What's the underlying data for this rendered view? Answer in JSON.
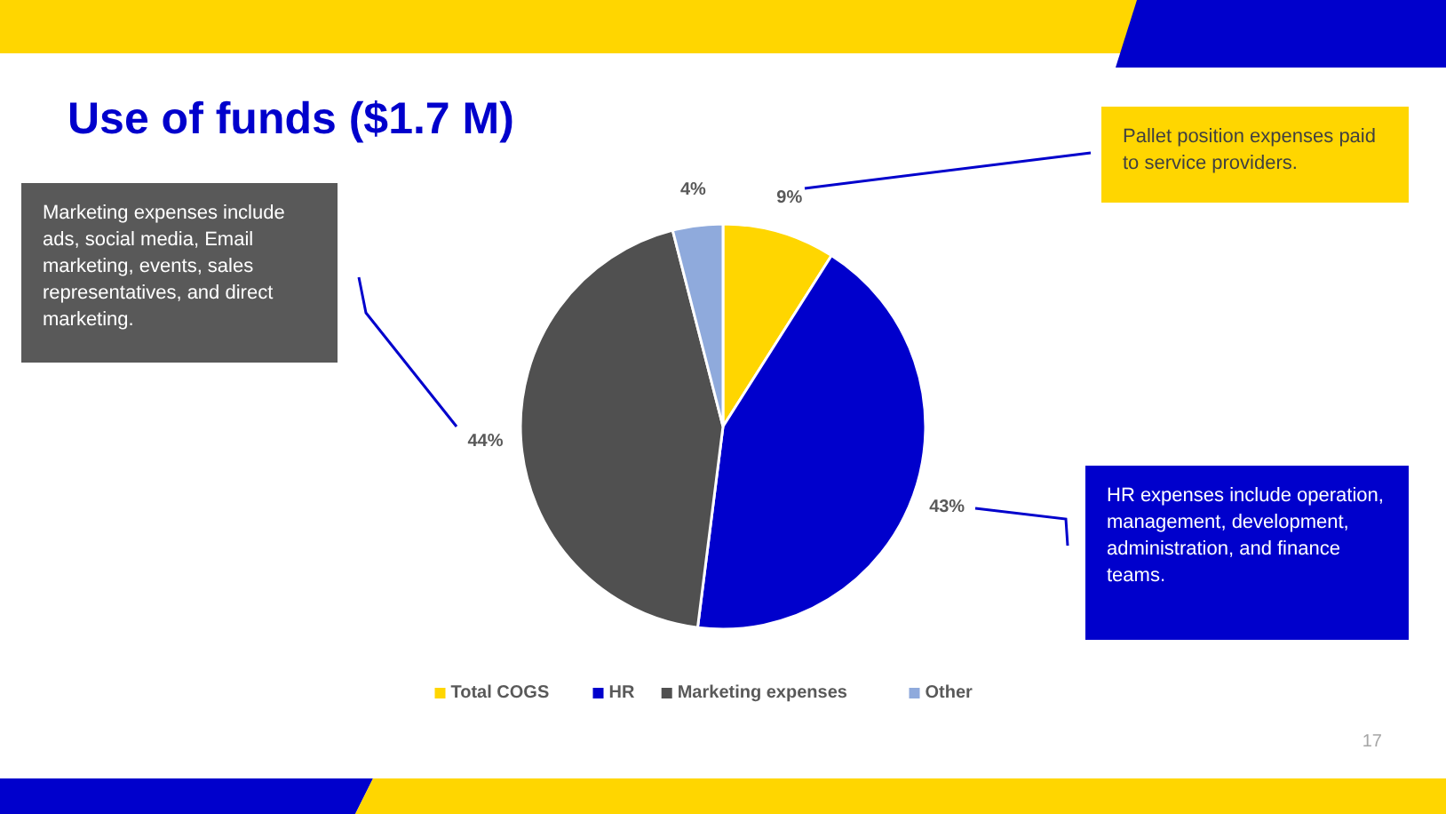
{
  "chart_data": {
    "type": "pie",
    "title": "Use of funds ($1.7 M)",
    "categories": [
      "Total COGS",
      "HR",
      "Marketing expenses",
      "Other"
    ],
    "values": [
      9,
      43,
      44,
      4
    ],
    "colors": [
      "#ffd600",
      "#0000cc",
      "#505050",
      "#8faadc"
    ],
    "value_labels": [
      "9%",
      "43%",
      "44%",
      "4%"
    ],
    "legend": "bottom",
    "annotations": [
      "Marketing expenses include ads, social media, Email marketing, events, sales representatives, and direct marketing.",
      "Pallet position expenses paid to service providers.",
      "HR expenses include operation, management, development, administration, and finance teams.",
      "17"
    ]
  }
}
